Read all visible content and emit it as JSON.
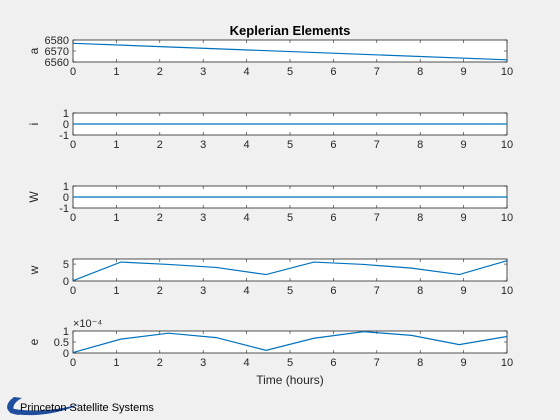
{
  "figure": {
    "title": "Keplerian Elements",
    "xlabel": "Time (hours)",
    "background": "#f0f0f0",
    "line_color": "#0072BD"
  },
  "logo": {
    "text": "Princeton Satellite Systems",
    "icon": "pss-swoosh-logo-icon",
    "color": "#1f4e9c"
  },
  "chart_data": [
    {
      "type": "line",
      "title": "Keplerian Elements",
      "ylabel": "a",
      "xlabel": "",
      "xlim": [
        0,
        10
      ],
      "ylim": [
        6560,
        6580
      ],
      "xticks": [
        0,
        1,
        2,
        3,
        4,
        5,
        6,
        7,
        8,
        9,
        10
      ],
      "yticks": [
        6560,
        6570,
        6580
      ],
      "exponent_label": "",
      "series": [
        {
          "x": [
            0,
            10
          ],
          "y": [
            6577,
            6562
          ]
        }
      ]
    },
    {
      "type": "line",
      "ylabel": "i",
      "xlabel": "",
      "xlim": [
        0,
        10
      ],
      "ylim": [
        -1,
        1
      ],
      "xticks": [
        0,
        1,
        2,
        3,
        4,
        5,
        6,
        7,
        8,
        9,
        10
      ],
      "yticks": [
        -1,
        0,
        1
      ],
      "exponent_label": "",
      "series": [
        {
          "x": [
            0,
            10
          ],
          "y": [
            0,
            0
          ]
        }
      ]
    },
    {
      "type": "line",
      "ylabel": "W",
      "xlabel": "",
      "xlim": [
        0,
        10
      ],
      "ylim": [
        -1,
        1
      ],
      "xticks": [
        0,
        1,
        2,
        3,
        4,
        5,
        6,
        7,
        8,
        9,
        10
      ],
      "yticks": [
        -1,
        0,
        1
      ],
      "exponent_label": "",
      "series": [
        {
          "x": [
            0,
            10
          ],
          "y": [
            0,
            0
          ]
        }
      ]
    },
    {
      "type": "line",
      "ylabel": "w",
      "xlabel": "",
      "xlim": [
        0,
        10
      ],
      "ylim": [
        0,
        6.5
      ],
      "xticks": [
        0,
        1,
        2,
        3,
        4,
        5,
        6,
        7,
        8,
        9,
        10
      ],
      "yticks": [
        0,
        5
      ],
      "exponent_label": "",
      "series": [
        {
          "x": [
            0,
            1.1,
            2.2,
            3.3,
            4.45,
            5.55,
            6.7,
            7.8,
            8.9,
            10
          ],
          "y": [
            0.1,
            5.6,
            4.9,
            4.0,
            1.9,
            5.6,
            4.9,
            3.8,
            1.9,
            6.0
          ]
        }
      ]
    },
    {
      "type": "line",
      "ylabel": "e",
      "xlabel": "Time (hours)",
      "xlim": [
        0,
        10
      ],
      "ylim": [
        0,
        1
      ],
      "xticks": [
        0,
        1,
        2,
        3,
        4,
        5,
        6,
        7,
        8,
        9,
        10
      ],
      "yticks": [
        0,
        0.5,
        1
      ],
      "exponent_label": "×10⁻⁴",
      "series": [
        {
          "x": [
            0,
            1.1,
            2.2,
            3.3,
            4.45,
            5.55,
            6.7,
            7.8,
            8.9,
            10
          ],
          "y": [
            0.02,
            0.63,
            0.9,
            0.7,
            0.12,
            0.67,
            0.97,
            0.8,
            0.38,
            0.75
          ]
        }
      ]
    }
  ]
}
